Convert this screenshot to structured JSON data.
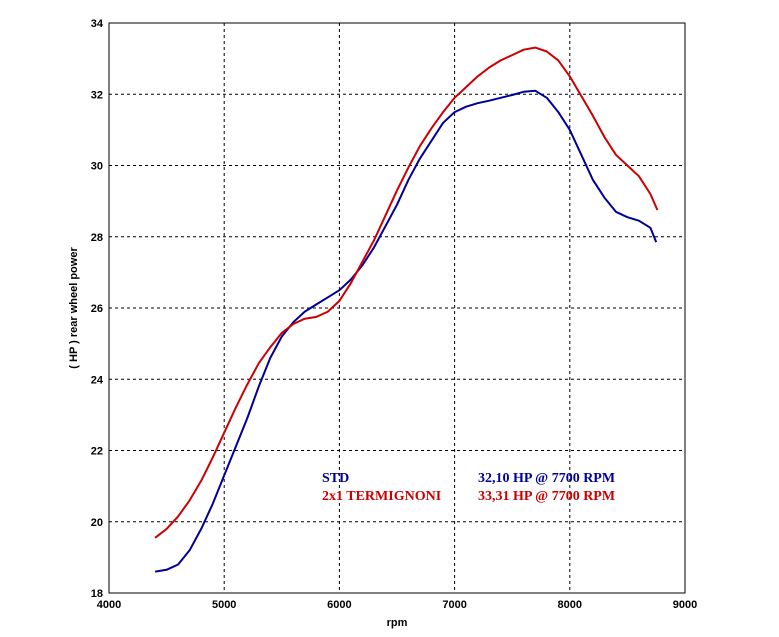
{
  "chart_data": {
    "type": "line",
    "title": "",
    "xlabel": "rpm",
    "ylabel": "( HP )  rear  wheel  power",
    "xlim": [
      4000,
      9000
    ],
    "ylim": [
      18,
      34
    ],
    "x_ticks": [
      "4000",
      "5000",
      "6000",
      "7000",
      "8000",
      "9000"
    ],
    "y_ticks": [
      "18",
      "20",
      "22",
      "24",
      "26",
      "28",
      "30",
      "32",
      "34"
    ],
    "grid": true,
    "series": [
      {
        "name": "STD",
        "summary": "32,10 HP @ 7700 RPM",
        "color": "#000099",
        "points": [
          [
            4400,
            18.6
          ],
          [
            4500,
            18.65
          ],
          [
            4600,
            18.8
          ],
          [
            4700,
            19.2
          ],
          [
            4800,
            19.8
          ],
          [
            4900,
            20.5
          ],
          [
            5000,
            21.3
          ],
          [
            5100,
            22.1
          ],
          [
            5200,
            22.9
          ],
          [
            5300,
            23.8
          ],
          [
            5400,
            24.6
          ],
          [
            5500,
            25.2
          ],
          [
            5600,
            25.6
          ],
          [
            5700,
            25.9
          ],
          [
            5800,
            26.1
          ],
          [
            5900,
            26.3
          ],
          [
            6000,
            26.5
          ],
          [
            6100,
            26.8
          ],
          [
            6200,
            27.2
          ],
          [
            6300,
            27.7
          ],
          [
            6400,
            28.3
          ],
          [
            6500,
            28.9
          ],
          [
            6600,
            29.6
          ],
          [
            6700,
            30.2
          ],
          [
            6800,
            30.7
          ],
          [
            6900,
            31.2
          ],
          [
            7000,
            31.5
          ],
          [
            7100,
            31.65
          ],
          [
            7200,
            31.75
          ],
          [
            7300,
            31.82
          ],
          [
            7400,
            31.9
          ],
          [
            7500,
            31.98
          ],
          [
            7600,
            32.07
          ],
          [
            7700,
            32.1
          ],
          [
            7800,
            31.9
          ],
          [
            7900,
            31.5
          ],
          [
            8000,
            31.0
          ],
          [
            8100,
            30.3
          ],
          [
            8200,
            29.6
          ],
          [
            8300,
            29.1
          ],
          [
            8400,
            28.7
          ],
          [
            8500,
            28.55
          ],
          [
            8600,
            28.45
          ],
          [
            8700,
            28.25
          ],
          [
            8750,
            27.85
          ]
        ]
      },
      {
        "name": "2x1 TERMIGNONI",
        "summary": "33,31 HP @ 7700 RPM",
        "color": "#cc0000",
        "points": [
          [
            4400,
            19.55
          ],
          [
            4500,
            19.8
          ],
          [
            4600,
            20.15
          ],
          [
            4700,
            20.6
          ],
          [
            4800,
            21.15
          ],
          [
            4900,
            21.8
          ],
          [
            5000,
            22.5
          ],
          [
            5100,
            23.2
          ],
          [
            5200,
            23.85
          ],
          [
            5300,
            24.45
          ],
          [
            5400,
            24.9
          ],
          [
            5500,
            25.3
          ],
          [
            5600,
            25.55
          ],
          [
            5700,
            25.7
          ],
          [
            5800,
            25.75
          ],
          [
            5900,
            25.9
          ],
          [
            6000,
            26.2
          ],
          [
            6100,
            26.7
          ],
          [
            6200,
            27.3
          ],
          [
            6300,
            27.9
          ],
          [
            6400,
            28.6
          ],
          [
            6500,
            29.3
          ],
          [
            6600,
            29.95
          ],
          [
            6700,
            30.55
          ],
          [
            6800,
            31.05
          ],
          [
            6900,
            31.5
          ],
          [
            7000,
            31.9
          ],
          [
            7100,
            32.2
          ],
          [
            7200,
            32.5
          ],
          [
            7300,
            32.75
          ],
          [
            7400,
            32.95
          ],
          [
            7500,
            33.1
          ],
          [
            7600,
            33.25
          ],
          [
            7700,
            33.31
          ],
          [
            7800,
            33.2
          ],
          [
            7900,
            32.95
          ],
          [
            8000,
            32.5
          ],
          [
            8100,
            31.95
          ],
          [
            8200,
            31.4
          ],
          [
            8300,
            30.8
          ],
          [
            8400,
            30.3
          ],
          [
            8500,
            30.0
          ],
          [
            8600,
            29.7
          ],
          [
            8700,
            29.2
          ],
          [
            8760,
            28.75
          ]
        ]
      }
    ]
  }
}
